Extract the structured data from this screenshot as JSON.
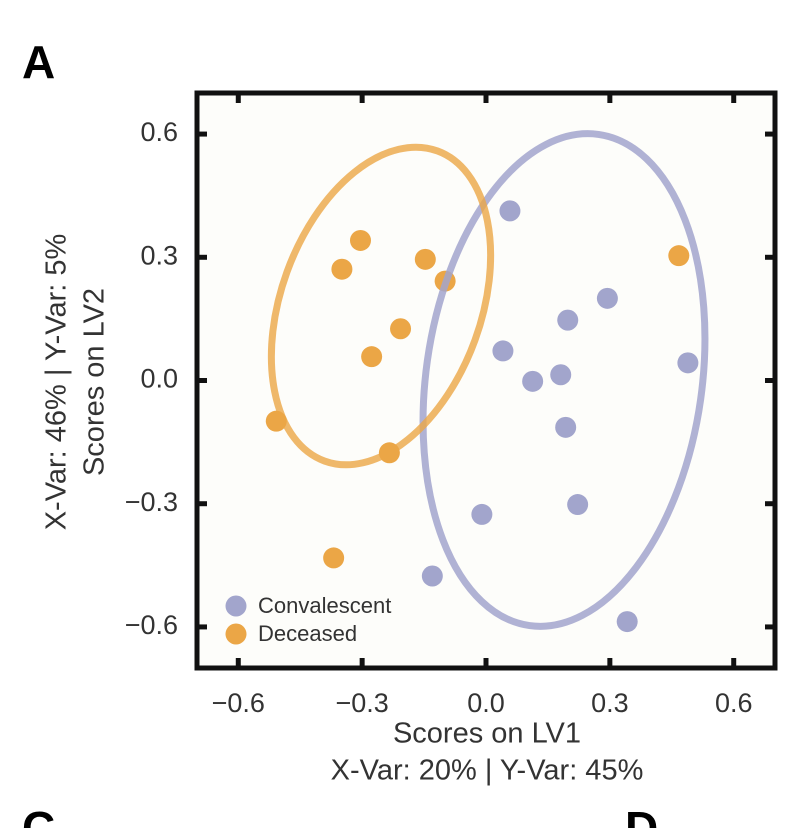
{
  "panel_letters": [
    "A",
    "C",
    "D"
  ],
  "chart_data": {
    "type": "scatter",
    "xlabel": "Scores on LV1",
    "xlabel2": "X-Var: 20% | Y-Var: 45%",
    "ylabel": "Scores on LV2",
    "ylabel2": "X-Var: 46% | Y-Var: 5%",
    "xlim": [
      -0.7,
      0.7
    ],
    "ylim": [
      -0.7,
      0.7
    ],
    "xticks": [
      {
        "value": -0.6,
        "label": "−0.6"
      },
      {
        "value": -0.3,
        "label": "−0.3"
      },
      {
        "value": 0,
        "label": "0.0"
      },
      0.3,
      0.6
    ],
    "yticks": [
      {
        "value": -0.6,
        "label": "−0.6"
      },
      {
        "value": -0.3,
        "label": "−0.3"
      },
      {
        "value": 0,
        "label": "0.0"
      },
      0.3,
      0.6
    ],
    "legend": "lower left",
    "series": [
      {
        "name": "Convalescent",
        "color": "#a2a5cc",
        "x": [
          0.058,
          0.294,
          0.198,
          0.041,
          0.113,
          0.181,
          0.489,
          0.193,
          0.222,
          -0.01,
          -0.13,
          0.342
        ],
        "values": [
          0.413,
          0.2,
          0.147,
          0.072,
          -0.002,
          0.014,
          0.043,
          -0.114,
          -0.302,
          -0.326,
          -0.476,
          -0.587
        ]
      },
      {
        "name": "Deceased",
        "color": "#eba646",
        "x": [
          -0.304,
          -0.349,
          -0.147,
          -0.099,
          -0.207,
          -0.277,
          -0.508,
          -0.234,
          -0.369,
          0.467
        ],
        "values": [
          0.341,
          0.271,
          0.295,
          0.242,
          0.126,
          0.058,
          -0.099,
          -0.176,
          -0.432,
          0.304
        ]
      }
    ]
  }
}
